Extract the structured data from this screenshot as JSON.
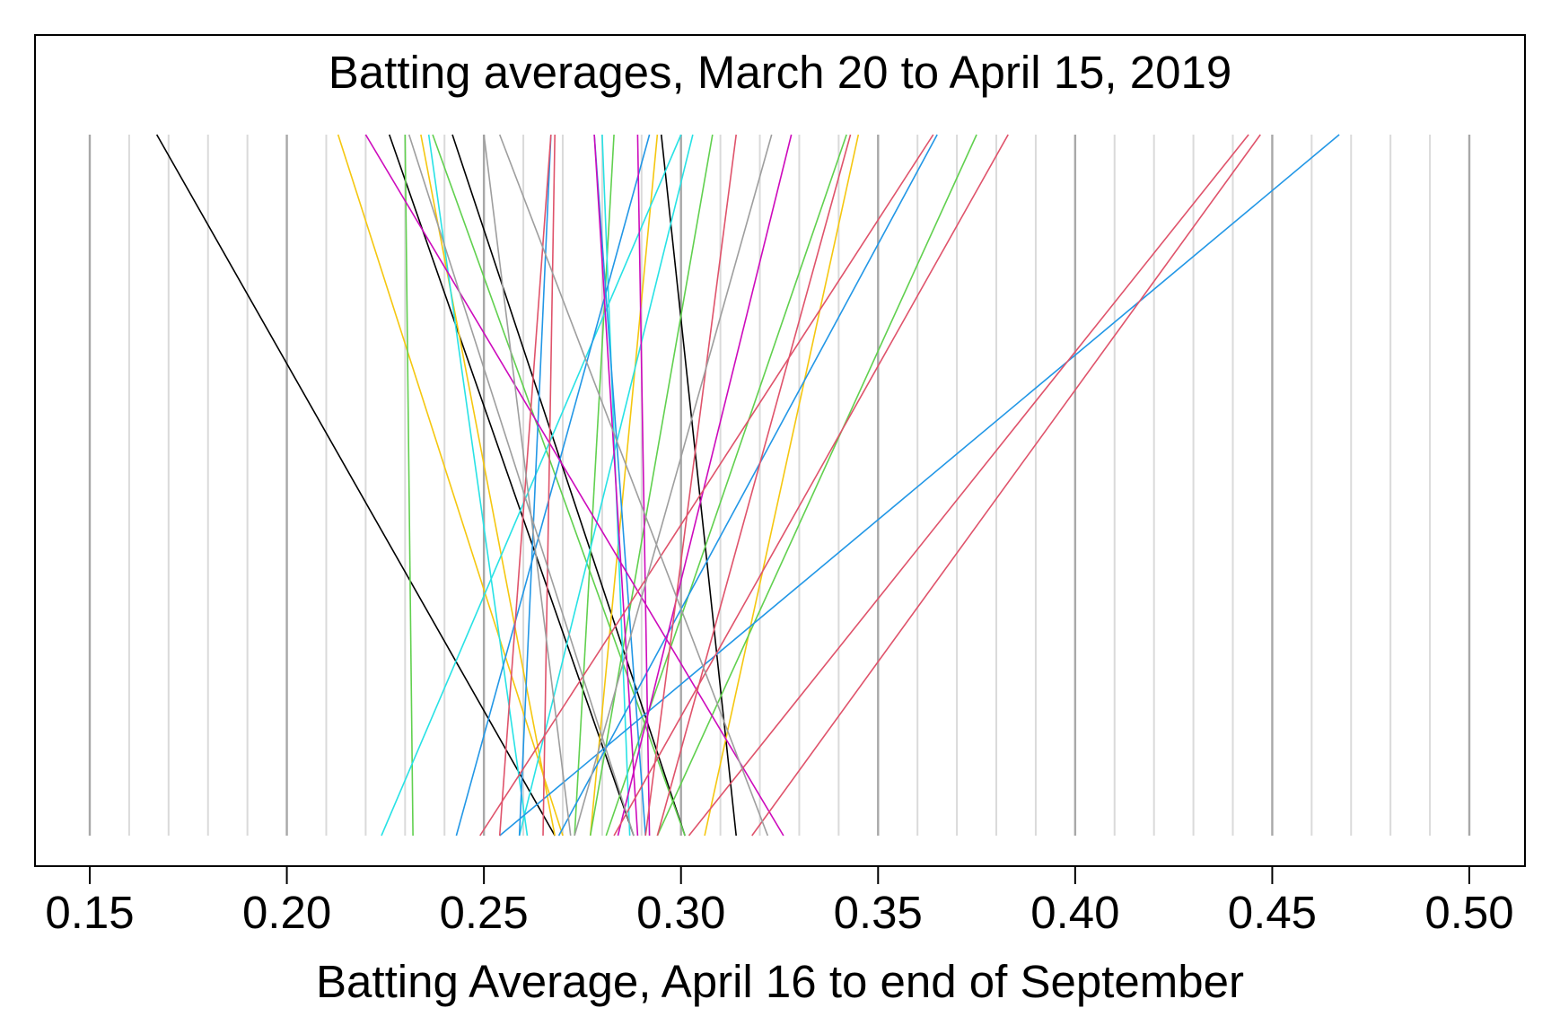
{
  "chart_data": {
    "type": "line",
    "title": "Batting averages, March 20 to April 15, 2019",
    "xlabel": "Batting Average, April 16 to end of September",
    "ylabel": "",
    "xlim": [
      0.15,
      0.5
    ],
    "xticks": [
      "0.15",
      "0.20",
      "0.25",
      "0.30",
      "0.35",
      "0.40",
      "0.45",
      "0.50"
    ],
    "minor_grid_step": 0.01,
    "grid": true,
    "description_top_axis": "batting average, March 20 to April 15 (top)",
    "description_bottom_axis": "batting average, April 16 to end of September (bottom)",
    "series": [
      {
        "top": 0.167,
        "bottom": 0.268,
        "color": "#000000"
      },
      {
        "top": 0.226,
        "bottom": 0.288,
        "color": "#000000"
      },
      {
        "top": 0.242,
        "bottom": 0.301,
        "color": "#000000"
      },
      {
        "top": 0.295,
        "bottom": 0.314,
        "color": "#000000"
      },
      {
        "top": 0.213,
        "bottom": 0.27,
        "color": "#F5C710"
      },
      {
        "top": 0.234,
        "bottom": 0.268,
        "color": "#F5C710"
      },
      {
        "top": 0.294,
        "bottom": 0.277,
        "color": "#F5C710"
      },
      {
        "top": 0.345,
        "bottom": 0.306,
        "color": "#F5C710"
      },
      {
        "top": 0.23,
        "bottom": 0.232,
        "color": "#61D04F"
      },
      {
        "top": 0.237,
        "bottom": 0.301,
        "color": "#61D04F"
      },
      {
        "top": 0.283,
        "bottom": 0.273,
        "color": "#61D04F"
      },
      {
        "top": 0.308,
        "bottom": 0.277,
        "color": "#61D04F"
      },
      {
        "top": 0.342,
        "bottom": 0.281,
        "color": "#61D04F"
      },
      {
        "top": 0.375,
        "bottom": 0.294,
        "color": "#61D04F"
      },
      {
        "top": 0.236,
        "bottom": 0.261,
        "color": "#28E2E5"
      },
      {
        "top": 0.28,
        "bottom": 0.287,
        "color": "#28E2E5"
      },
      {
        "top": 0.3,
        "bottom": 0.224,
        "color": "#28E2E5"
      },
      {
        "top": 0.303,
        "bottom": 0.259,
        "color": "#28E2E5"
      },
      {
        "top": 0.278,
        "bottom": 0.291,
        "color": "#2297E6"
      },
      {
        "top": 0.292,
        "bottom": 0.243,
        "color": "#2297E6"
      },
      {
        "top": 0.267,
        "bottom": 0.259,
        "color": "#2297E6"
      },
      {
        "top": 0.365,
        "bottom": 0.269,
        "color": "#2297E6"
      },
      {
        "top": 0.467,
        "bottom": 0.254,
        "color": "#2297E6"
      },
      {
        "top": 0.22,
        "bottom": 0.326,
        "color": "#CD0BBC"
      },
      {
        "top": 0.278,
        "bottom": 0.289,
        "color": "#CD0BBC"
      },
      {
        "top": 0.289,
        "bottom": 0.292,
        "color": "#CD0BBC"
      },
      {
        "top": 0.328,
        "bottom": 0.284,
        "color": "#CD0BBC"
      },
      {
        "top": 0.267,
        "bottom": 0.254,
        "color": "#DF536B"
      },
      {
        "top": 0.268,
        "bottom": 0.265,
        "color": "#DF536B"
      },
      {
        "top": 0.314,
        "bottom": 0.291,
        "color": "#DF536B"
      },
      {
        "top": 0.343,
        "bottom": 0.294,
        "color": "#DF536B"
      },
      {
        "top": 0.364,
        "bottom": 0.249,
        "color": "#DF536B"
      },
      {
        "top": 0.383,
        "bottom": 0.283,
        "color": "#DF536B"
      },
      {
        "top": 0.444,
        "bottom": 0.302,
        "color": "#DF536B"
      },
      {
        "top": 0.447,
        "bottom": 0.318,
        "color": "#DF536B"
      },
      {
        "top": 0.231,
        "bottom": 0.288,
        "color": "#9E9E9E"
      },
      {
        "top": 0.254,
        "bottom": 0.322,
        "color": "#9E9E9E"
      },
      {
        "top": 0.25,
        "bottom": 0.272,
        "color": "#9E9E9E"
      },
      {
        "top": 0.323,
        "bottom": 0.273,
        "color": "#9E9E9E"
      }
    ]
  }
}
